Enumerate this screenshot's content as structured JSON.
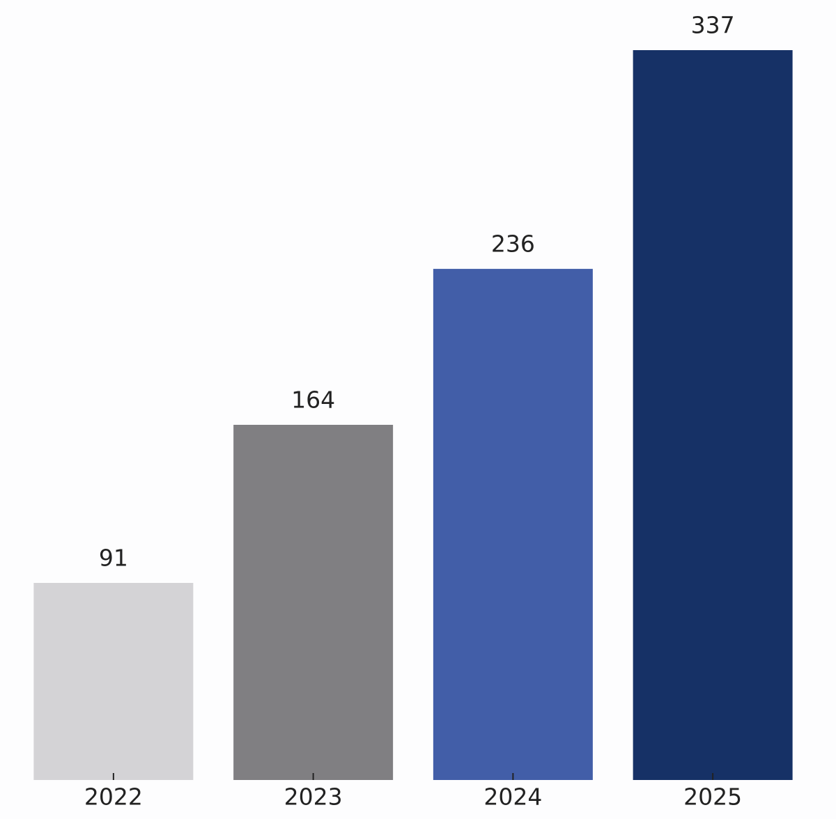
{
  "chart_data": {
    "type": "bar",
    "categories": [
      "2022",
      "2023",
      "2024",
      "2025"
    ],
    "values": [
      91,
      164,
      236,
      337
    ],
    "colors": [
      "#d4d3d6",
      "#807f82",
      "#425ea8",
      "#163166"
    ]
  }
}
